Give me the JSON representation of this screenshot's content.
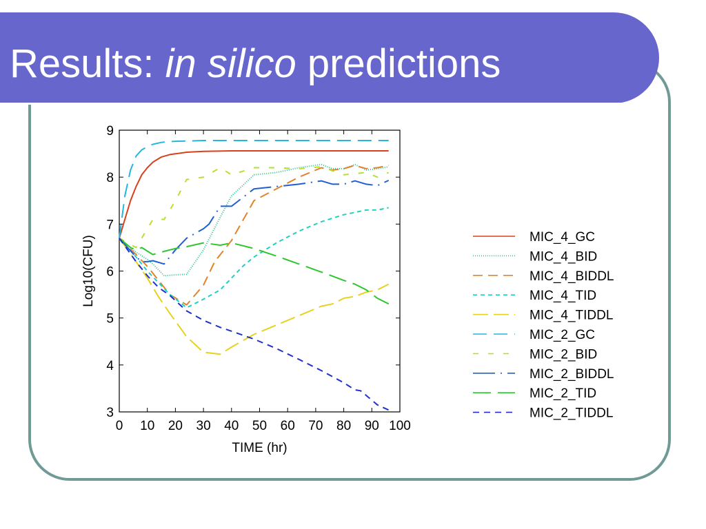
{
  "slide": {
    "title_prefix": "Results: ",
    "title_italic": "in silico",
    "title_suffix": " predictions"
  },
  "colors": {
    "title_bar": "#6666cc",
    "frame": "#6f9a96"
  },
  "chart_data": {
    "type": "line",
    "xlabel": "TIME (hr)",
    "ylabel": "Log10(CFU)",
    "xlim": [
      0,
      100
    ],
    "ylim": [
      3,
      9
    ],
    "xticks": [
      0,
      10,
      20,
      30,
      40,
      50,
      60,
      70,
      80,
      90,
      100
    ],
    "yticks": [
      3,
      4,
      5,
      6,
      7,
      8,
      9
    ],
    "grid": false,
    "legend": "right",
    "series": [
      {
        "name": "MIC_4_GC",
        "color": "#d9401a",
        "dash": "",
        "x": [
          0,
          2,
          4,
          6,
          8,
          10,
          12,
          15,
          18,
          24,
          30,
          40,
          50,
          60,
          70,
          80,
          90,
          96
        ],
        "y": [
          6.7,
          7.1,
          7.5,
          7.8,
          8.05,
          8.2,
          8.32,
          8.43,
          8.48,
          8.53,
          8.55,
          8.56,
          8.56,
          8.56,
          8.56,
          8.56,
          8.56,
          8.56
        ]
      },
      {
        "name": "MIC_4_BID",
        "color": "#22c48a",
        "dash": "1 2",
        "x": [
          0,
          6,
          10,
          12,
          16,
          20,
          24,
          30,
          36,
          40,
          48,
          56,
          64,
          72,
          76,
          80,
          84,
          88,
          92,
          96
        ],
        "y": [
          6.7,
          6.4,
          6.25,
          6.15,
          5.9,
          5.92,
          5.93,
          6.45,
          7.15,
          7.6,
          8.05,
          8.1,
          8.2,
          8.27,
          8.18,
          8.18,
          8.27,
          8.15,
          8.18,
          8.22
        ]
      },
      {
        "name": "MIC_4_BIDDL",
        "color": "#e0832a",
        "dash": "14 8",
        "x": [
          0,
          6,
          10,
          14,
          18,
          24,
          30,
          34,
          36,
          40,
          48,
          56,
          64,
          72,
          76,
          80,
          84,
          88,
          92,
          96
        ],
        "y": [
          6.7,
          6.35,
          6.1,
          5.8,
          5.5,
          5.28,
          5.7,
          6.2,
          6.35,
          6.65,
          7.5,
          7.75,
          8.0,
          8.2,
          8.15,
          8.18,
          8.25,
          8.18,
          8.2,
          8.25
        ]
      },
      {
        "name": "MIC_4_TID",
        "color": "#1ed0c0",
        "dash": "6 5",
        "x": [
          0,
          6,
          10,
          14,
          18,
          24,
          30,
          36,
          40,
          44,
          48,
          56,
          64,
          72,
          80,
          88,
          92,
          96
        ],
        "y": [
          6.7,
          6.3,
          6.0,
          5.75,
          5.5,
          5.22,
          5.4,
          5.6,
          5.85,
          6.1,
          6.3,
          6.6,
          6.85,
          7.05,
          7.2,
          7.3,
          7.3,
          7.35
        ]
      },
      {
        "name": "MIC_4_TIDDL",
        "color": "#e6d21e",
        "dash": "22 8",
        "x": [
          0,
          6,
          10,
          14,
          18,
          24,
          30,
          36,
          40,
          48,
          56,
          64,
          72,
          76,
          80,
          84,
          88,
          92,
          96
        ],
        "y": [
          6.7,
          6.2,
          5.85,
          5.45,
          5.1,
          4.6,
          4.27,
          4.23,
          4.38,
          4.65,
          4.85,
          5.05,
          5.25,
          5.3,
          5.42,
          5.46,
          5.55,
          5.6,
          5.72
        ]
      },
      {
        "name": "MIC_2_GC",
        "color": "#22b6e0",
        "dash": "20 10",
        "x": [
          0,
          2,
          4,
          6,
          8,
          10,
          12,
          15,
          18,
          24,
          30,
          40,
          50,
          60,
          70,
          80,
          90,
          96
        ],
        "y": [
          6.7,
          7.6,
          8.15,
          8.45,
          8.58,
          8.65,
          8.7,
          8.74,
          8.76,
          8.77,
          8.78,
          8.78,
          8.78,
          8.78,
          8.78,
          8.78,
          8.78,
          8.78
        ]
      },
      {
        "name": "MIC_2_BID",
        "color": "#b6e030",
        "dash": "8 14",
        "x": [
          0,
          6,
          10,
          12,
          16,
          20,
          24,
          30,
          36,
          40,
          48,
          56,
          64,
          72,
          80,
          88,
          92,
          96
        ],
        "y": [
          6.7,
          6.5,
          6.9,
          7.1,
          7.1,
          7.5,
          7.95,
          8.0,
          8.2,
          8.05,
          8.2,
          8.2,
          8.18,
          8.22,
          8.05,
          8.1,
          8.0,
          8.1
        ]
      },
      {
        "name": "MIC_2_BIDDL",
        "color": "#1f5fd0",
        "dash": "32 8 2 8",
        "x": [
          0,
          6,
          8,
          10,
          12,
          16,
          20,
          24,
          30,
          32,
          36,
          40,
          48,
          56,
          64,
          72,
          76,
          80,
          84,
          88,
          92,
          96
        ],
        "y": [
          6.7,
          6.3,
          6.2,
          6.2,
          6.22,
          6.15,
          6.45,
          6.7,
          6.9,
          7.0,
          7.38,
          7.38,
          7.75,
          7.8,
          7.85,
          7.92,
          7.85,
          7.85,
          7.92,
          7.85,
          7.82,
          7.93
        ]
      },
      {
        "name": "MIC_2_TID",
        "color": "#2ec62e",
        "dash": "26 10",
        "x": [
          0,
          4,
          6,
          8,
          12,
          16,
          20,
          24,
          30,
          36,
          40,
          48,
          56,
          64,
          72,
          80,
          84,
          88,
          92,
          96
        ],
        "y": [
          6.7,
          6.5,
          6.45,
          6.5,
          6.35,
          6.42,
          6.48,
          6.52,
          6.6,
          6.55,
          6.6,
          6.48,
          6.32,
          6.15,
          5.98,
          5.8,
          5.72,
          5.6,
          5.42,
          5.3
        ]
      },
      {
        "name": "MIC_2_TIDDL",
        "color": "#2030c8",
        "dash": "9 7",
        "x": [
          0,
          6,
          10,
          14,
          18,
          24,
          30,
          36,
          40,
          48,
          56,
          64,
          72,
          80,
          84,
          86,
          88,
          92,
          96
        ],
        "y": [
          6.7,
          6.2,
          5.9,
          5.65,
          5.48,
          5.15,
          4.95,
          4.8,
          4.72,
          4.55,
          4.35,
          4.12,
          3.88,
          3.62,
          3.47,
          3.45,
          3.35,
          3.15,
          3.04
        ]
      }
    ]
  }
}
